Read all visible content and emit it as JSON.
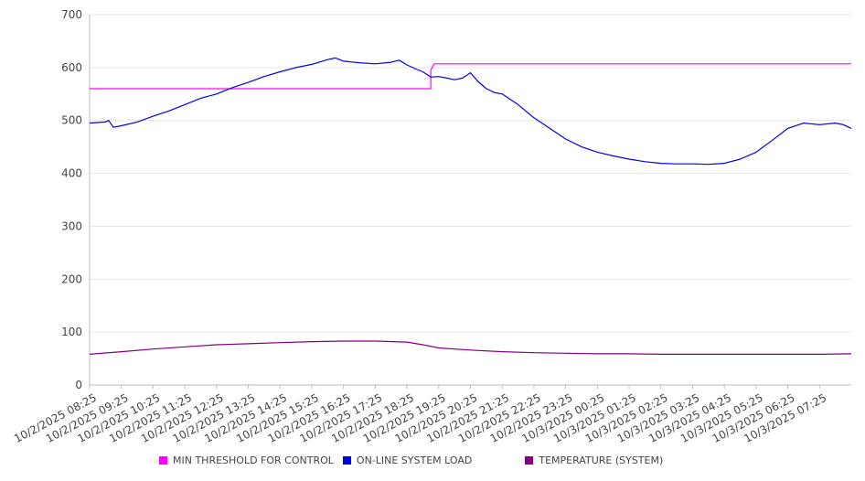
{
  "chart_data": {
    "type": "line",
    "title": "",
    "xlabel": "",
    "ylabel": "",
    "ylim": [
      0,
      700
    ],
    "yticks": [
      0,
      100,
      200,
      300,
      400,
      500,
      600,
      700
    ],
    "grid": true,
    "legend_placement": "bottom",
    "x_tick_labels": [
      "10/2/2025 08:25",
      "10/2/2025 09:25",
      "10/2/2025 10:25",
      "10/2/2025 11:25",
      "10/2/2025 12:25",
      "10/2/2025 13:25",
      "10/2/2025 14:25",
      "10/2/2025 15:25",
      "10/2/2025 16:25",
      "10/2/2025 17:25",
      "10/2/2025 18:25",
      "10/2/2025 19:25",
      "10/2/2025 20:25",
      "10/2/2025 21:25",
      "10/2/2025 22:25",
      "10/2/2025 23:25",
      "10/3/2025 00:25",
      "10/3/2025 01:25",
      "10/3/2025 02:25",
      "10/3/2025 03:25",
      "10/3/2025 04:25",
      "10/3/2025 05:25",
      "10/3/2025 06:25",
      "10/3/2025 07:25"
    ],
    "x_range_hours": [
      0,
      24
    ],
    "series": [
      {
        "name": "MIN THRESHOLD FOR CONTROL",
        "color": "#ff00ff",
        "step": true,
        "x": [
          0,
          10.75,
          10.75,
          10.85,
          24
        ],
        "values": [
          560,
          560,
          595,
          607,
          607
        ]
      },
      {
        "name": "ON-LINE SYSTEM LOAD",
        "color": "#0000ee",
        "x": [
          0,
          0.25,
          0.5,
          0.6,
          0.75,
          1,
          1.5,
          2,
          2.5,
          3,
          3.5,
          4,
          4.5,
          5,
          5.5,
          6,
          6.5,
          7,
          7.5,
          7.75,
          8,
          8.5,
          9,
          9.5,
          9.75,
          10,
          10.25,
          10.5,
          10.75,
          11,
          11.25,
          11.5,
          11.75,
          12,
          12.25,
          12.5,
          12.75,
          13,
          13.5,
          14,
          14.5,
          15,
          15.5,
          16,
          16.5,
          17,
          17.5,
          18,
          18.5,
          19,
          19.5,
          20,
          20.5,
          21,
          21.5,
          22,
          22.5,
          23,
          23.5,
          23.75,
          24
        ],
        "values": [
          495,
          496,
          497,
          500,
          487,
          490,
          497,
          508,
          518,
          530,
          542,
          550,
          562,
          572,
          583,
          592,
          600,
          606,
          615,
          618,
          612,
          609,
          607,
          610,
          614,
          605,
          598,
          592,
          582,
          583,
          580,
          577,
          580,
          590,
          573,
          560,
          553,
          550,
          530,
          505,
          485,
          465,
          450,
          440,
          433,
          427,
          422,
          419,
          418,
          418,
          417,
          419,
          427,
          440,
          462,
          485,
          495,
          492,
          495,
          492,
          485
        ]
      },
      {
        "name": "TEMPERATURE (SYSTEM)",
        "color": "#800080",
        "x": [
          0,
          1,
          2,
          3,
          4,
          5,
          6,
          7,
          8,
          9,
          10,
          10.5,
          11,
          12,
          13,
          14,
          15,
          16,
          17,
          18,
          19,
          20,
          21,
          22,
          23,
          24
        ],
        "values": [
          58,
          63,
          68,
          72,
          76,
          78,
          80,
          82,
          83,
          83,
          81,
          76,
          70,
          66,
          63,
          61,
          60,
          59,
          59,
          58,
          58,
          58,
          58,
          58,
          58,
          59
        ]
      }
    ]
  }
}
